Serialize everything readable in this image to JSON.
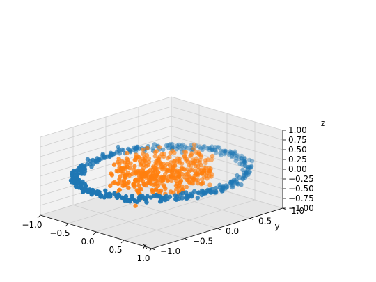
{
  "chart_data": {
    "type": "scatter",
    "projection": "3d",
    "title": "",
    "xlabel": "x",
    "ylabel": "y",
    "zlabel": "z",
    "xlim": [
      -1.0,
      1.0
    ],
    "ylim": [
      -1.0,
      1.0
    ],
    "zlim": [
      -1.0,
      1.0
    ],
    "x_ticks": [
      "−1.0",
      "−0.5",
      "0.0",
      "0.5",
      "1.0"
    ],
    "y_ticks": [
      "−1.0",
      "−0.5",
      "0.0",
      "0.5",
      "1.0"
    ],
    "z_ticks": [
      "−1.00",
      "−0.75",
      "−0.50",
      "−0.25",
      "0.00",
      "0.25",
      "0.50",
      "0.75",
      "1.00"
    ],
    "grid": true,
    "legend": "none",
    "series": [
      {
        "shape": "ring",
        "color": "#1f77b4",
        "point_count": 400,
        "radius": 1.0,
        "z_center": 0.0
      },
      {
        "shape": "disk",
        "color": "#ff7f0e",
        "point_count": 400,
        "radius_max": 0.6,
        "z_center": 0.0,
        "z_spread": 0.35
      }
    ]
  }
}
